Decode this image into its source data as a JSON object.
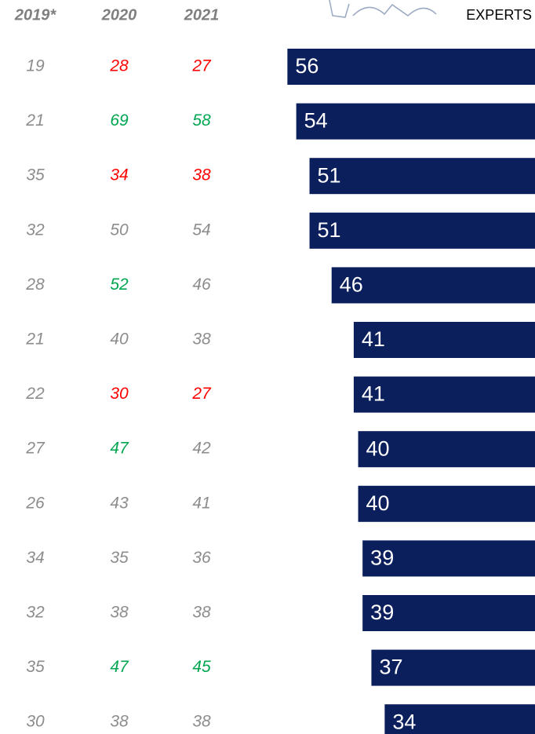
{
  "chart_data": {
    "type": "table-bar",
    "columns": [
      "2019*",
      "2020",
      "2021"
    ],
    "bar_header": "EXPERTS",
    "bar_color": "#0b1f5c",
    "xlim": [
      0,
      121
    ],
    "rows": [
      {
        "values": [
          19,
          28,
          27
        ],
        "colors": [
          "#8c8c8c",
          "#ff0000",
          "#ff0000"
        ],
        "bar": 56
      },
      {
        "values": [
          21,
          69,
          58
        ],
        "colors": [
          "#8c8c8c",
          "#00a650",
          "#00a650"
        ],
        "bar": 54
      },
      {
        "values": [
          35,
          34,
          38
        ],
        "colors": [
          "#8c8c8c",
          "#ff0000",
          "#ff0000"
        ],
        "bar": 51
      },
      {
        "values": [
          32,
          50,
          54
        ],
        "colors": [
          "#8c8c8c",
          "#8c8c8c",
          "#8c8c8c"
        ],
        "bar": 51
      },
      {
        "values": [
          28,
          52,
          46
        ],
        "colors": [
          "#8c8c8c",
          "#00a650",
          "#8c8c8c"
        ],
        "bar": 46
      },
      {
        "values": [
          21,
          40,
          38
        ],
        "colors": [
          "#8c8c8c",
          "#8c8c8c",
          "#8c8c8c"
        ],
        "bar": 41
      },
      {
        "values": [
          22,
          30,
          27
        ],
        "colors": [
          "#8c8c8c",
          "#ff0000",
          "#ff0000"
        ],
        "bar": 41
      },
      {
        "values": [
          27,
          47,
          42
        ],
        "colors": [
          "#8c8c8c",
          "#00a650",
          "#8c8c8c"
        ],
        "bar": 40
      },
      {
        "values": [
          26,
          43,
          41
        ],
        "colors": [
          "#8c8c8c",
          "#8c8c8c",
          "#8c8c8c"
        ],
        "bar": 40
      },
      {
        "values": [
          34,
          35,
          36
        ],
        "colors": [
          "#8c8c8c",
          "#8c8c8c",
          "#8c8c8c"
        ],
        "bar": 39
      },
      {
        "values": [
          32,
          38,
          38
        ],
        "colors": [
          "#8c8c8c",
          "#8c8c8c",
          "#8c8c8c"
        ],
        "bar": 39
      },
      {
        "values": [
          35,
          47,
          45
        ],
        "colors": [
          "#8c8c8c",
          "#00a650",
          "#00a650"
        ],
        "bar": 37
      },
      {
        "values": [
          30,
          38,
          38
        ],
        "colors": [
          "#8c8c8c",
          "#8c8c8c",
          "#8c8c8c"
        ],
        "bar": 34
      }
    ]
  }
}
